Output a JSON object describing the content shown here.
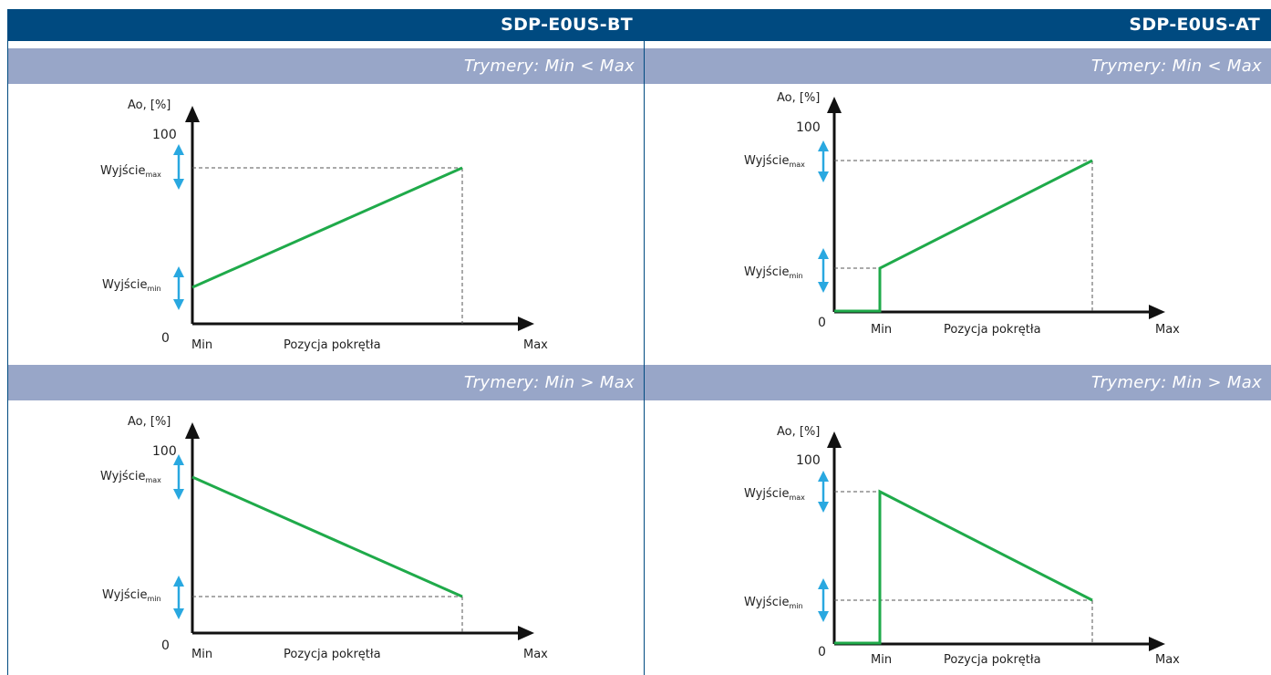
{
  "columns": [
    {
      "title": "SDP-E0US-BT"
    },
    {
      "title": "SDP-E0US-AT"
    }
  ],
  "rows": [
    {
      "subtitle_left": "Trymery: Min < Max",
      "subtitle_right": "Trymery: Min < Max"
    },
    {
      "subtitle_left": "Trymery: Min > Max",
      "subtitle_right": "Trymery: Min > Max"
    }
  ],
  "labels": {
    "y_axis": "Ao, [%]",
    "y_top": "100",
    "y_zero": "0",
    "x_min": "Min",
    "x_center": "Pozycja pokrętła",
    "x_max": "Max",
    "out_base": "Wyjście",
    "out_max_sub": "max",
    "out_min_sub": "min"
  },
  "colors": {
    "header_bg": "#004a80",
    "subheader_bg": "#98a6c8",
    "line": "#1faa4a",
    "arrow": "#29a8e0",
    "axis": "#111111"
  },
  "icons": [
    "double-arrow-icon"
  ]
}
